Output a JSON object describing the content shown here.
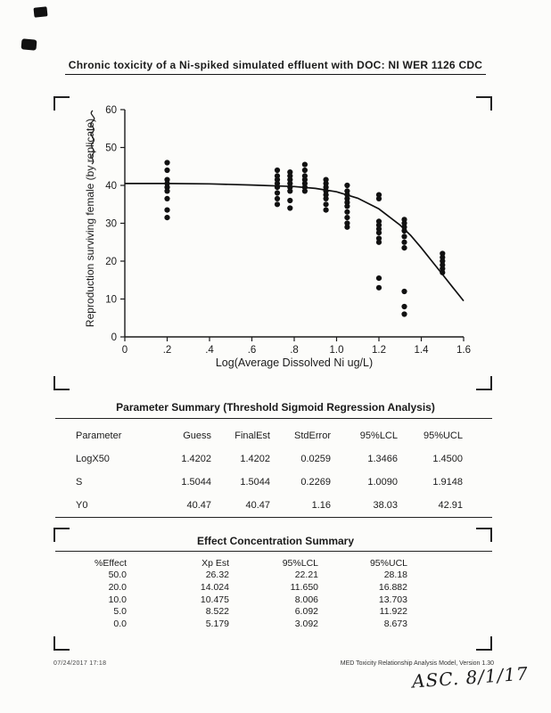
{
  "page": {
    "title": "Chronic toxicity of a Ni-spiked simulated effluent with DOC: NI WER 1126 CDC",
    "footer_left": "07/24/2017  17:18",
    "footer_right": "MED Toxicity Relationship Analysis Model, Version 1.30",
    "handwritten_note": "ASC. 8/1/17",
    "handwritten_y_axis_note": "(illegible handwriting)"
  },
  "chart_data": {
    "type": "scatter",
    "title": "",
    "xlabel": "Log(Average Dissolved Ni ug/L)",
    "ylabel": "Reproduction surviving female (by replicate)",
    "xlim": [
      0,
      1.6
    ],
    "ylim": [
      0,
      60
    ],
    "x_ticks": [
      0,
      0.2,
      0.4,
      0.6,
      0.8,
      1.0,
      1.2,
      1.4,
      1.6
    ],
    "x_tick_labels": [
      "0",
      ".2",
      ".4",
      ".6",
      ".8",
      "1.0",
      "1.2",
      "1.4",
      "1.6"
    ],
    "y_ticks": [
      0,
      10,
      20,
      30,
      40,
      50,
      60
    ],
    "grid": false,
    "legend": "none",
    "model": {
      "Y0": 40.47,
      "LogX50": 1.4202,
      "S": 1.5044
    },
    "points": [
      [
        0.2,
        46
      ],
      [
        0.2,
        44
      ],
      [
        0.2,
        41.5
      ],
      [
        0.2,
        40.5
      ],
      [
        0.2,
        39.5
      ],
      [
        0.2,
        38.5
      ],
      [
        0.2,
        36.5
      ],
      [
        0.2,
        33.5
      ],
      [
        0.2,
        31.5
      ],
      [
        0.72,
        44
      ],
      [
        0.72,
        42.5
      ],
      [
        0.72,
        41.5
      ],
      [
        0.72,
        40.5
      ],
      [
        0.72,
        39.5
      ],
      [
        0.72,
        38
      ],
      [
        0.72,
        36.5
      ],
      [
        0.72,
        35
      ],
      [
        0.78,
        43.5
      ],
      [
        0.78,
        42.5
      ],
      [
        0.78,
        41.5
      ],
      [
        0.78,
        40.5
      ],
      [
        0.78,
        39.5
      ],
      [
        0.78,
        38.5
      ],
      [
        0.78,
        36
      ],
      [
        0.78,
        34
      ],
      [
        0.85,
        45.5
      ],
      [
        0.85,
        44
      ],
      [
        0.85,
        42.5
      ],
      [
        0.85,
        41.5
      ],
      [
        0.85,
        40.5
      ],
      [
        0.85,
        39.5
      ],
      [
        0.85,
        38.5
      ],
      [
        0.95,
        41.5
      ],
      [
        0.95,
        40.5
      ],
      [
        0.95,
        39.5
      ],
      [
        0.95,
        38.5
      ],
      [
        0.95,
        37.5
      ],
      [
        0.95,
        36.5
      ],
      [
        0.95,
        35
      ],
      [
        0.95,
        33.5
      ],
      [
        1.05,
        40
      ],
      [
        1.05,
        38.5
      ],
      [
        1.05,
        37.5
      ],
      [
        1.05,
        36.5
      ],
      [
        1.05,
        35.5
      ],
      [
        1.05,
        34.5
      ],
      [
        1.05,
        33
      ],
      [
        1.05,
        31.5
      ],
      [
        1.05,
        30
      ],
      [
        1.05,
        29
      ],
      [
        1.2,
        37.5
      ],
      [
        1.2,
        36.5
      ],
      [
        1.2,
        30.5
      ],
      [
        1.2,
        29.5
      ],
      [
        1.2,
        28.5
      ],
      [
        1.2,
        27.5
      ],
      [
        1.2,
        26
      ],
      [
        1.2,
        25
      ],
      [
        1.2,
        15.5
      ],
      [
        1.2,
        13
      ],
      [
        1.32,
        31
      ],
      [
        1.32,
        30
      ],
      [
        1.32,
        29
      ],
      [
        1.32,
        28
      ],
      [
        1.32,
        26.5
      ],
      [
        1.32,
        25
      ],
      [
        1.32,
        23.5
      ],
      [
        1.32,
        12
      ],
      [
        1.32,
        8
      ],
      [
        1.32,
        6
      ],
      [
        1.5,
        22
      ],
      [
        1.5,
        21
      ],
      [
        1.5,
        20
      ],
      [
        1.5,
        19
      ],
      [
        1.5,
        18
      ],
      [
        1.5,
        17
      ]
    ],
    "curve": [
      [
        0,
        40.5
      ],
      [
        0.2,
        40.5
      ],
      [
        0.4,
        40.4
      ],
      [
        0.6,
        40.1
      ],
      [
        0.8,
        39.7
      ],
      [
        0.9,
        39.2
      ],
      [
        1.0,
        38.3
      ],
      [
        1.1,
        36.6
      ],
      [
        1.2,
        33.8
      ],
      [
        1.3,
        29.5
      ],
      [
        1.35,
        26.8
      ],
      [
        1.4,
        23.5
      ],
      [
        1.45,
        20
      ],
      [
        1.5,
        16.5
      ],
      [
        1.55,
        13
      ],
      [
        1.6,
        9.5
      ]
    ]
  },
  "parameter_summary": {
    "title": "Parameter Summary (Threshold Sigmoid Regression Analysis)",
    "headers": [
      "Parameter",
      "Guess",
      "FinalEst",
      "StdError",
      "95%LCL",
      "95%UCL"
    ],
    "rows": [
      [
        "LogX50",
        "1.4202",
        "1.4202",
        "0.0259",
        "1.3466",
        "1.4500"
      ],
      [
        "S",
        "1.5044",
        "1.5044",
        "0.2269",
        "1.0090",
        "1.9148"
      ],
      [
        "Y0",
        "40.47",
        "40.47",
        "1.16",
        "38.03",
        "42.91"
      ]
    ]
  },
  "effect_summary": {
    "title": "Effect Concentration Summary",
    "headers": [
      "%Effect",
      "Xp Est",
      "95%LCL",
      "95%UCL"
    ],
    "rows": [
      [
        "50.0",
        "26.32",
        "22.21",
        "28.18"
      ],
      [
        "20.0",
        "14.024",
        "11.650",
        "16.882"
      ],
      [
        "10.0",
        "10.475",
        "8.006",
        "13.703"
      ],
      [
        "5.0",
        "8.522",
        "6.092",
        "11.922"
      ],
      [
        "0.0",
        "5.179",
        "3.092",
        "8.673"
      ]
    ]
  }
}
